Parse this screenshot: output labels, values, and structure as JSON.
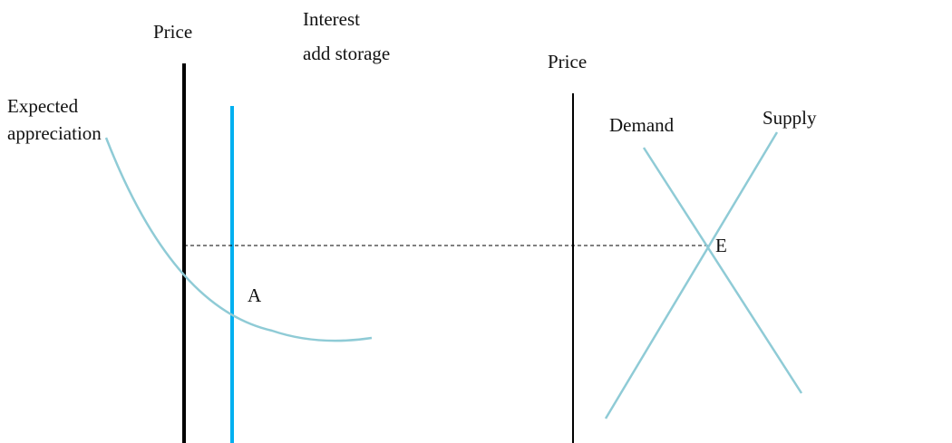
{
  "labels": {
    "price_left": "Price",
    "interest": "Interest",
    "storage": "add storage",
    "price_right": "Price",
    "expected": "Expected",
    "appreciation": "appreciation",
    "demand": "Demand",
    "supply": "Supply",
    "point_a": "A",
    "point_e": "E"
  }
}
